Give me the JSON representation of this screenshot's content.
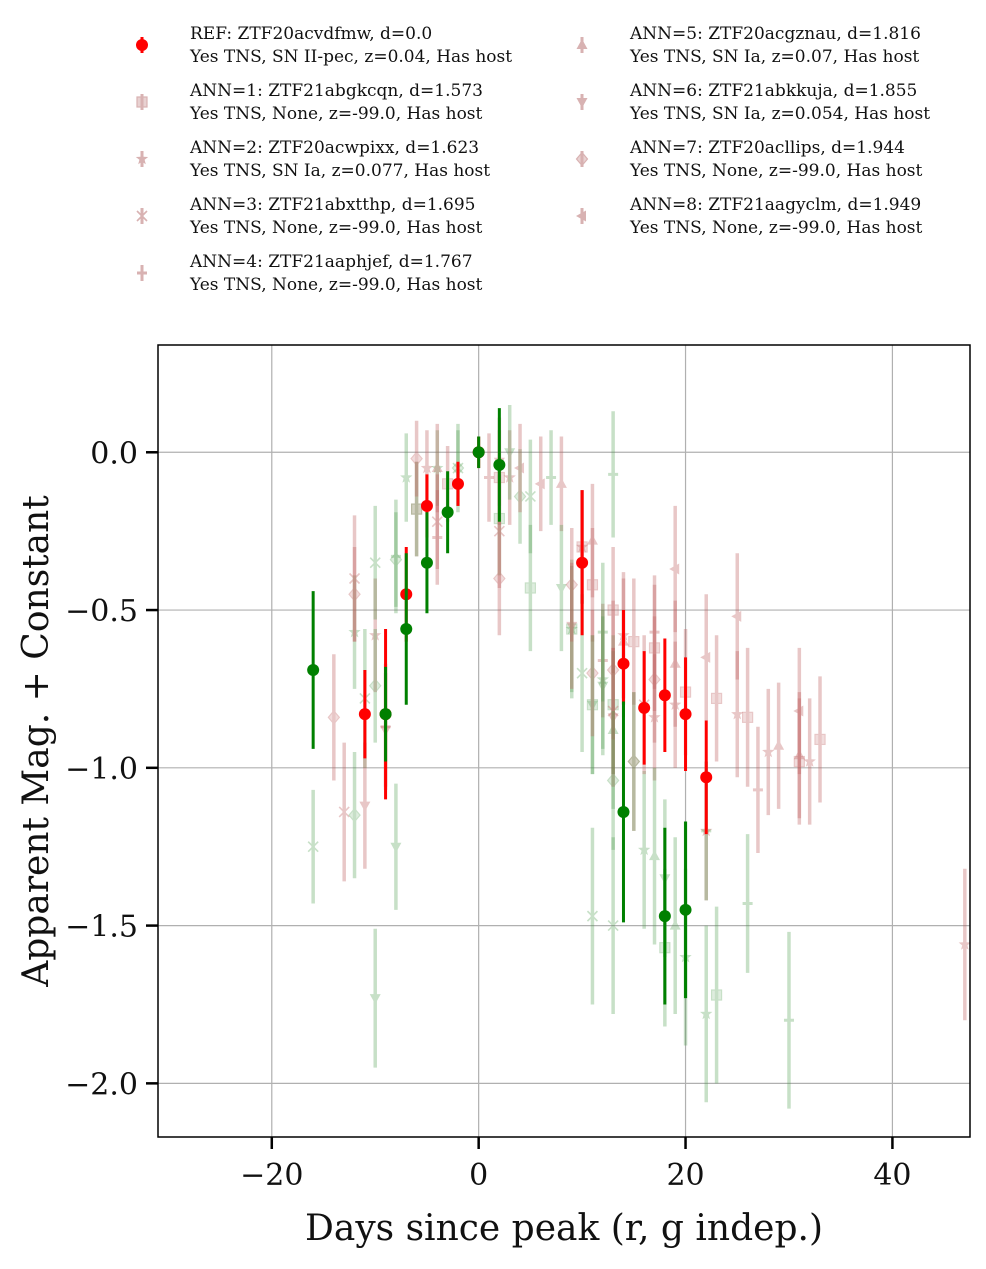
{
  "chart_data": {
    "type": "scatter",
    "xlabel": "Days since peak (r, g indep.)",
    "ylabel": "Apparent Mag. + Constant",
    "xlim": [
      -31,
      47.5
    ],
    "ylim": [
      -2.17,
      0.34
    ],
    "xticks": [
      -20,
      0,
      20,
      40
    ],
    "xtick_labels": [
      "−20",
      "0",
      "20",
      "40"
    ],
    "yticks": [
      0.0,
      -0.5,
      -1.0,
      -1.5,
      -2.0
    ],
    "ytick_labels": [
      "0.0",
      "−0.5",
      "−1.0",
      "−1.5",
      "−2.0"
    ],
    "grid": true,
    "legend_position": "above plot, two columns",
    "colors": {
      "r_band": "#ff0000",
      "g_band": "#008000",
      "r_faded": "#c06060",
      "g_faded": "#4a9a4a"
    },
    "legend": [
      {
        "line1": "REF: ZTF20acvdfmw, d=0.0",
        "line2": "Yes TNS, SN II-pec, z=0.04, Has host",
        "marker": "circle",
        "color": "#ff0000",
        "alpha": 1.0
      },
      {
        "line1": "ANN=1: ZTF21abgkcqn, d=1.573",
        "line2": "Yes TNS, None, z=-99.0, Has host",
        "marker": "square",
        "color": "#a04040",
        "alpha": 0.4
      },
      {
        "line1": "ANN=2: ZTF20acwpixx, d=1.623",
        "line2": "Yes TNS, SN Ia, z=0.077, Has host",
        "marker": "star",
        "color": "#a04040",
        "alpha": 0.4
      },
      {
        "line1": "ANN=3: ZTF21abxtthp, d=1.695",
        "line2": "Yes TNS, None, z=-99.0, Has host",
        "marker": "x",
        "color": "#a04040",
        "alpha": 0.4
      },
      {
        "line1": "ANN=4: ZTF21aaphjef, d=1.767",
        "line2": "Yes TNS, None, z=-99.0, Has host",
        "marker": "plus",
        "color": "#a04040",
        "alpha": 0.4
      },
      {
        "line1": "ANN=5: ZTF20acgznau, d=1.816",
        "line2": "Yes TNS, SN Ia, z=0.07, Has host",
        "marker": "triangle-up",
        "color": "#a04040",
        "alpha": 0.4
      },
      {
        "line1": "ANN=6: ZTF21abkkuja, d=1.855",
        "line2": "Yes TNS, SN Ia, z=0.054, Has host",
        "marker": "triangle-down",
        "color": "#a04040",
        "alpha": 0.4
      },
      {
        "line1": "ANN=7: ZTF20acllips, d=1.944",
        "line2": "Yes TNS, None, z=-99.0, Has host",
        "marker": "diamond",
        "color": "#a04040",
        "alpha": 0.4
      },
      {
        "line1": "ANN=8: ZTF21aagyclm, d=1.949",
        "line2": "Yes TNS, None, z=-99.0, Has host",
        "marker": "triangle-left",
        "color": "#a04040",
        "alpha": 0.4
      }
    ],
    "series": [
      {
        "name": "REF: ZTF20acvdfmw, d=0.0",
        "band": "r",
        "marker": "circle",
        "alpha": 1.0,
        "points": [
          [
            -11,
            -0.83,
            0.14
          ],
          [
            -9,
            -0.83,
            0.27
          ],
          [
            -7,
            -0.45,
            0.15
          ],
          [
            -5,
            -0.17,
            0.1
          ],
          [
            -2,
            -0.1,
            0.07
          ],
          [
            0,
            0.0,
            0.05
          ],
          [
            10,
            -0.35,
            0.23
          ],
          [
            14,
            -0.67,
            0.17
          ],
          [
            16,
            -0.81,
            0.18
          ],
          [
            18,
            -0.77,
            0.18
          ],
          [
            20,
            -0.83,
            0.18
          ],
          [
            22,
            -1.03,
            0.18
          ]
        ]
      },
      {
        "name": "REF: ZTF20acvdfmw, d=0.0",
        "band": "g",
        "marker": "circle",
        "alpha": 1.0,
        "points": [
          [
            -16,
            -0.69,
            0.25
          ],
          [
            -9,
            -0.83,
            0.15
          ],
          [
            -7,
            -0.56,
            0.24
          ],
          [
            -5,
            -0.35,
            0.16
          ],
          [
            -3,
            -0.19,
            0.13
          ],
          [
            0,
            0.0,
            0.05
          ],
          [
            2,
            -0.04,
            0.18
          ],
          [
            14,
            -1.14,
            0.35
          ],
          [
            18,
            -1.47,
            0.28
          ],
          [
            20,
            -1.45,
            0.28
          ]
        ]
      },
      {
        "name": "ANN=1: ZTF21abgkcqn, d=1.573",
        "band": "r",
        "marker": "square",
        "alpha": 0.35,
        "points": [
          [
            -6,
            -0.18,
            0.15
          ],
          [
            -3,
            -0.1,
            0.12
          ],
          [
            2,
            -0.08,
            0.15
          ],
          [
            10,
            -0.3,
            0.18
          ],
          [
            11,
            -0.42,
            0.18
          ],
          [
            13,
            -0.5,
            0.2
          ],
          [
            15,
            -0.6,
            0.2
          ],
          [
            17,
            -0.62,
            0.2
          ],
          [
            20,
            -0.76,
            0.2
          ],
          [
            23,
            -0.78,
            0.2
          ],
          [
            26,
            -0.84,
            0.22
          ],
          [
            31,
            -0.98,
            0.2
          ],
          [
            33,
            -0.91,
            0.2
          ]
        ]
      },
      {
        "name": "ANN=1: ZTF21abgkcqn, d=1.573",
        "band": "g",
        "marker": "square",
        "alpha": 0.3,
        "points": [
          [
            -6,
            -0.18,
            0.15
          ],
          [
            2,
            -0.21,
            0.18
          ],
          [
            5,
            -0.43,
            0.2
          ],
          [
            9,
            -0.56,
            0.2
          ],
          [
            11,
            -0.8,
            0.22
          ],
          [
            13,
            -0.8,
            0.22
          ],
          [
            18,
            -1.57,
            0.25
          ],
          [
            23,
            -1.72,
            0.28
          ]
        ]
      },
      {
        "name": "ANN=2: ZTF20acwpixx, d=1.623",
        "band": "r",
        "marker": "star",
        "alpha": 0.35,
        "points": [
          [
            -10,
            -0.58,
            0.18
          ],
          [
            -5,
            -0.05,
            0.12
          ],
          [
            3,
            -0.08,
            0.15
          ],
          [
            10,
            -0.3,
            0.18
          ],
          [
            14,
            -0.58,
            0.2
          ],
          [
            17,
            -0.84,
            0.2
          ],
          [
            19,
            -0.8,
            0.2
          ],
          [
            22,
            -1.2,
            0.22
          ],
          [
            25,
            -0.83,
            0.2
          ],
          [
            28,
            -0.95,
            0.2
          ],
          [
            32,
            -0.98,
            0.2
          ],
          [
            47,
            -1.56,
            0.24
          ]
        ]
      },
      {
        "name": "ANN=2: ZTF20acwpixx, d=1.623",
        "band": "g",
        "marker": "star",
        "alpha": 0.3,
        "points": [
          [
            -12,
            -0.57,
            0.18
          ],
          [
            -7,
            -0.08,
            0.14
          ],
          [
            -4,
            -0.05,
            0.12
          ],
          [
            9,
            -0.56,
            0.22
          ],
          [
            12,
            -0.72,
            0.22
          ],
          [
            16,
            -1.26,
            0.25
          ],
          [
            20,
            -1.6,
            0.28
          ],
          [
            22,
            -1.78,
            0.28
          ]
        ]
      },
      {
        "name": "ANN=3: ZTF21abxtthp, d=1.695",
        "band": "r",
        "marker": "x",
        "alpha": 0.35,
        "points": [
          [
            -12,
            -0.4,
            0.2
          ],
          [
            -13,
            -1.14,
            0.22
          ],
          [
            -4,
            -0.22,
            0.15
          ],
          [
            2,
            -0.25,
            0.18
          ],
          [
            13,
            -0.82,
            0.2
          ],
          [
            16,
            -0.8,
            0.22
          ]
        ]
      },
      {
        "name": "ANN=3: ZTF21abxtthp, d=1.695",
        "band": "g",
        "marker": "x",
        "alpha": 0.3,
        "points": [
          [
            -16,
            -1.25,
            0.18
          ],
          [
            -11,
            -0.78,
            0.22
          ],
          [
            -10,
            -0.35,
            0.18
          ],
          [
            -2,
            -0.05,
            0.14
          ],
          [
            5,
            -0.14,
            0.18
          ],
          [
            10,
            -0.7,
            0.25
          ],
          [
            11,
            -1.47,
            0.28
          ],
          [
            13,
            -1.5,
            0.28
          ]
        ]
      },
      {
        "name": "ANN=4: ZTF21aaphjef, d=1.767",
        "band": "r",
        "marker": "plus",
        "alpha": 0.35,
        "points": [
          [
            -9,
            -0.87,
            0.2
          ],
          [
            -4,
            -0.27,
            0.15
          ],
          [
            1,
            -0.08,
            0.14
          ],
          [
            12,
            -0.66,
            0.18
          ],
          [
            17,
            -0.57,
            0.18
          ],
          [
            27,
            -1.07,
            0.2
          ]
        ]
      },
      {
        "name": "ANN=4: ZTF21aaphjef, d=1.767",
        "band": "g",
        "marker": "plus",
        "alpha": 0.3,
        "points": [
          [
            -8,
            -0.33,
            0.18
          ],
          [
            7,
            -0.08,
            0.15
          ],
          [
            12,
            -0.57,
            0.22
          ],
          [
            13,
            -0.07,
            0.2
          ],
          [
            22,
            -1.2,
            0.22
          ],
          [
            26,
            -1.43,
            0.22
          ],
          [
            30,
            -1.8,
            0.28
          ]
        ]
      },
      {
        "name": "ANN=5: ZTF20acgznau, d=1.816",
        "band": "r",
        "marker": "triangle-up",
        "alpha": 0.35,
        "points": [
          [
            -4,
            -0.05,
            0.14
          ],
          [
            8,
            -0.1,
            0.15
          ],
          [
            11,
            -0.28,
            0.18
          ],
          [
            14,
            -0.6,
            0.2
          ],
          [
            19,
            -0.67,
            0.2
          ],
          [
            29,
            -0.93,
            0.2
          ],
          [
            31,
            -0.96,
            0.2
          ]
        ]
      },
      {
        "name": "ANN=5: ZTF20acgznau, d=1.816",
        "band": "g",
        "marker": "triangle-up",
        "alpha": 0.3,
        "points": [
          [
            13,
            -0.88,
            0.25
          ],
          [
            17,
            -1.28,
            0.28
          ],
          [
            19,
            -1.5,
            0.28
          ]
        ]
      },
      {
        "name": "ANN=6: ZTF21abkkuja, d=1.855",
        "band": "r",
        "marker": "triangle-down",
        "alpha": 0.35,
        "points": [
          [
            -11,
            -1.12,
            0.2
          ],
          [
            -9,
            -0.88,
            0.18
          ],
          [
            2,
            -0.03,
            0.14
          ],
          [
            9,
            -0.55,
            0.2
          ],
          [
            13,
            -0.84,
            0.22
          ]
        ]
      },
      {
        "name": "ANN=6: ZTF21abkkuja, d=1.855",
        "band": "g",
        "marker": "triangle-down",
        "alpha": 0.3,
        "points": [
          [
            -10,
            -1.73,
            0.22
          ],
          [
            -8,
            -1.25,
            0.2
          ],
          [
            3,
            0.0,
            0.15
          ],
          [
            8,
            -0.43,
            0.2
          ],
          [
            11,
            -0.8,
            0.22
          ],
          [
            12,
            -0.74,
            0.22
          ],
          [
            18,
            -1.35,
            0.25
          ],
          [
            20,
            -1.45,
            0.28
          ]
        ]
      },
      {
        "name": "ANN=7: ZTF20acllips, d=1.944",
        "band": "r",
        "marker": "diamond",
        "alpha": 0.35,
        "points": [
          [
            -12,
            -0.45,
            0.15
          ],
          [
            -14,
            -0.84,
            0.2
          ],
          [
            -6,
            -0.02,
            0.12
          ],
          [
            2,
            -0.4,
            0.18
          ],
          [
            9,
            -0.42,
            0.18
          ],
          [
            11,
            -0.7,
            0.2
          ],
          [
            13,
            -0.69,
            0.22
          ],
          [
            15,
            -0.98,
            0.22
          ],
          [
            17,
            -0.72,
            0.2
          ]
        ]
      },
      {
        "name": "ANN=7: ZTF20acllips, d=1.944",
        "band": "g",
        "marker": "diamond",
        "alpha": 0.3,
        "points": [
          [
            -12,
            -1.15,
            0.2
          ],
          [
            -10,
            -0.74,
            0.18
          ],
          [
            -8,
            -0.34,
            0.15
          ],
          [
            -2,
            -0.05,
            0.12
          ],
          [
            4,
            -0.14,
            0.15
          ],
          [
            13,
            -1.04,
            0.22
          ],
          [
            15,
            -0.98,
            0.22
          ]
        ]
      },
      {
        "name": "ANN=8: ZTF21aagyclm, d=1.949",
        "band": "r",
        "marker": "triangle-left",
        "alpha": 0.35,
        "points": [
          [
            4,
            -0.05,
            0.14
          ],
          [
            6,
            -0.1,
            0.15
          ],
          [
            19,
            -0.37,
            0.2
          ],
          [
            22,
            -0.65,
            0.2
          ],
          [
            25,
            -0.52,
            0.2
          ],
          [
            31,
            -0.82,
            0.2
          ]
        ]
      }
    ]
  }
}
